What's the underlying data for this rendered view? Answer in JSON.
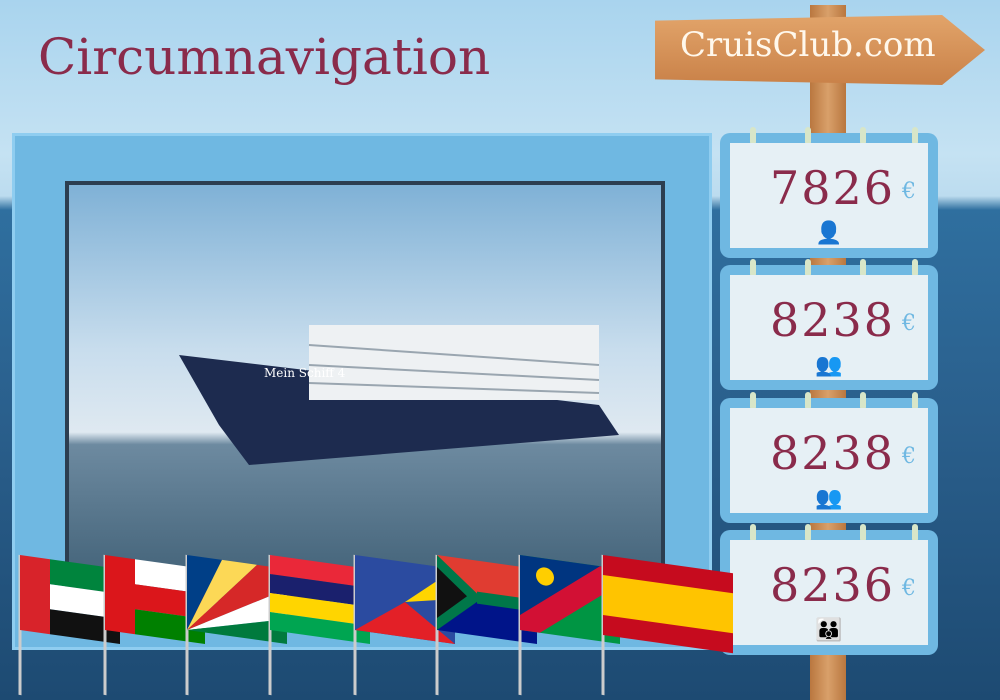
{
  "title": "Circumnavigation",
  "brand": "CruisClub.com",
  "ship_name": "Mein Schiff 4",
  "prices": [
    {
      "value": "7826",
      "currency": "€",
      "occupancy_icon": "single-person-icon"
    },
    {
      "value": "8238",
      "currency": "€",
      "occupancy_icon": "two-adults-icon"
    },
    {
      "value": "8238",
      "currency": "€",
      "occupancy_icon": "adult-child-icon"
    },
    {
      "value": "8236",
      "currency": "€",
      "occupancy_icon": "family-icon"
    }
  ],
  "flags": [
    "United Arab Emirates",
    "Oman",
    "Seychelles",
    "Mauritius",
    "Réunion",
    "South Africa",
    "Namibia",
    "Spain"
  ],
  "colors": {
    "title": "#8a2b4b",
    "frame": "#6fb8e2",
    "price": "#8a2b4b"
  }
}
